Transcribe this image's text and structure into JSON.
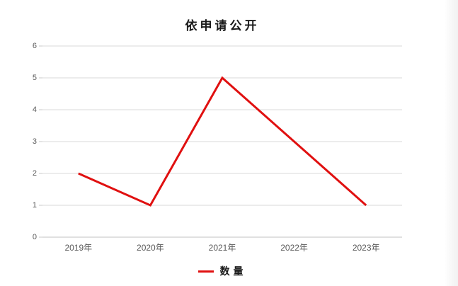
{
  "chart_data": {
    "type": "line",
    "title": "依申请公开",
    "categories": [
      "2019年",
      "2020年",
      "2021年",
      "2022年",
      "2023年"
    ],
    "series": [
      {
        "name": "数量",
        "values": [
          2,
          1,
          5,
          3,
          1
        ],
        "color": "#e01010"
      }
    ],
    "xlabel": "",
    "ylabel": "",
    "ylim": [
      0,
      6
    ],
    "ytick_step": 1,
    "ytick_labels": [
      "0",
      "1",
      "2",
      "3",
      "4",
      "5",
      "6"
    ],
    "grid": true,
    "legend_position": "bottom-center"
  },
  "colors": {
    "series_line": "#e01010",
    "gridline": "#d9d9d9",
    "zero_axis": "#c0c0c0",
    "tick_mark": "#c9c9c9",
    "axis_label": "#595959",
    "background": "#ffffff"
  }
}
